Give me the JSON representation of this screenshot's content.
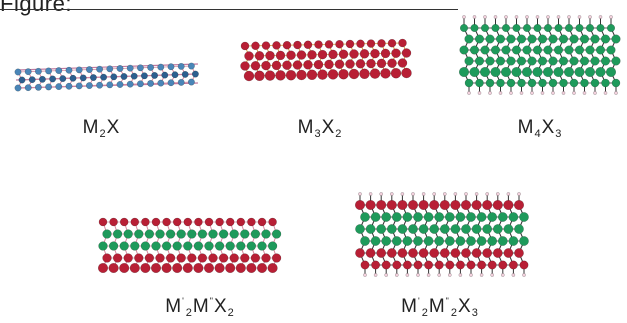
{
  "heading": "Figure:",
  "panels": [
    {
      "base": "M",
      "sub1": "2",
      "mid": "X",
      "sub2": "",
      "palette": "blue"
    },
    {
      "base": "M",
      "sub1": "3",
      "mid": "X",
      "sub2": "2",
      "palette": "red"
    },
    {
      "base": "M",
      "sub1": "4",
      "mid": "X",
      "sub2": "3",
      "palette": "green"
    },
    {
      "base": "M",
      "sup1": "'",
      "sub1": "2",
      "mid": "M",
      "sup2": "\"",
      "end": "X",
      "sub3": "2",
      "palette": "red-green"
    },
    {
      "base": "M",
      "sup1": "'",
      "sub1": "2",
      "mid": "M",
      "sup2": "\"",
      "sub2": "2",
      "end": "X",
      "sub3": "3",
      "palette": "red-green"
    }
  ],
  "colors": {
    "blue_atom": "#2c5f8f",
    "blue_atom2": "#4a86b8",
    "red_atom": "#b81f35",
    "green_atom": "#1e9a5b",
    "bond_pink": "#d88aa0",
    "bond_orange": "#d89a3c"
  }
}
